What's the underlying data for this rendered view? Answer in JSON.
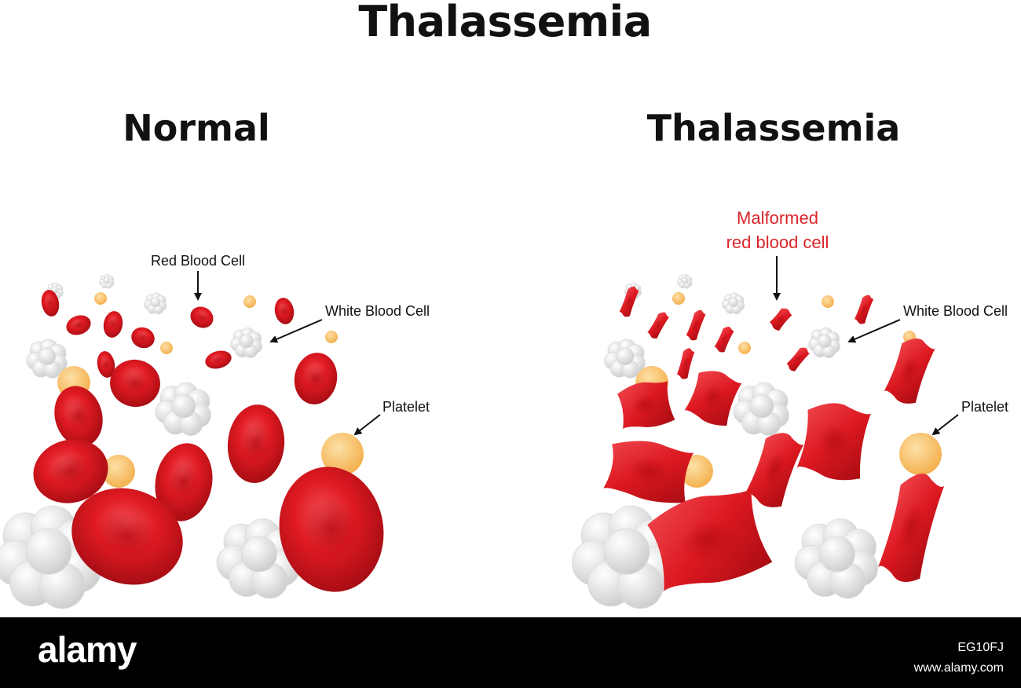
{
  "title": "Thalassemia",
  "panels": {
    "normal": {
      "heading": "Normal",
      "labels": {
        "red_blood_cell": "Red Blood Cell",
        "white_blood_cell": "White Blood Cell",
        "platelet": "Platelet"
      }
    },
    "thalassemia": {
      "heading": "Thalassemia",
      "labels": {
        "malformed_line1": "Malformed",
        "malformed_line2": "red blood cell",
        "white_blood_cell": "White Blood Cell",
        "platelet": "Platelet"
      }
    }
  },
  "footer": {
    "brand": "alamy",
    "image_id": "EG10FJ",
    "site": "www.alamy.com"
  },
  "colors": {
    "red_cell": "#d9181f",
    "red_cell_highlight": "#f0505a",
    "malformed_label": "#d9252a",
    "platelet": "#f8c062",
    "white_cell": "#e2e2e2",
    "footer_bg": "#000000"
  }
}
